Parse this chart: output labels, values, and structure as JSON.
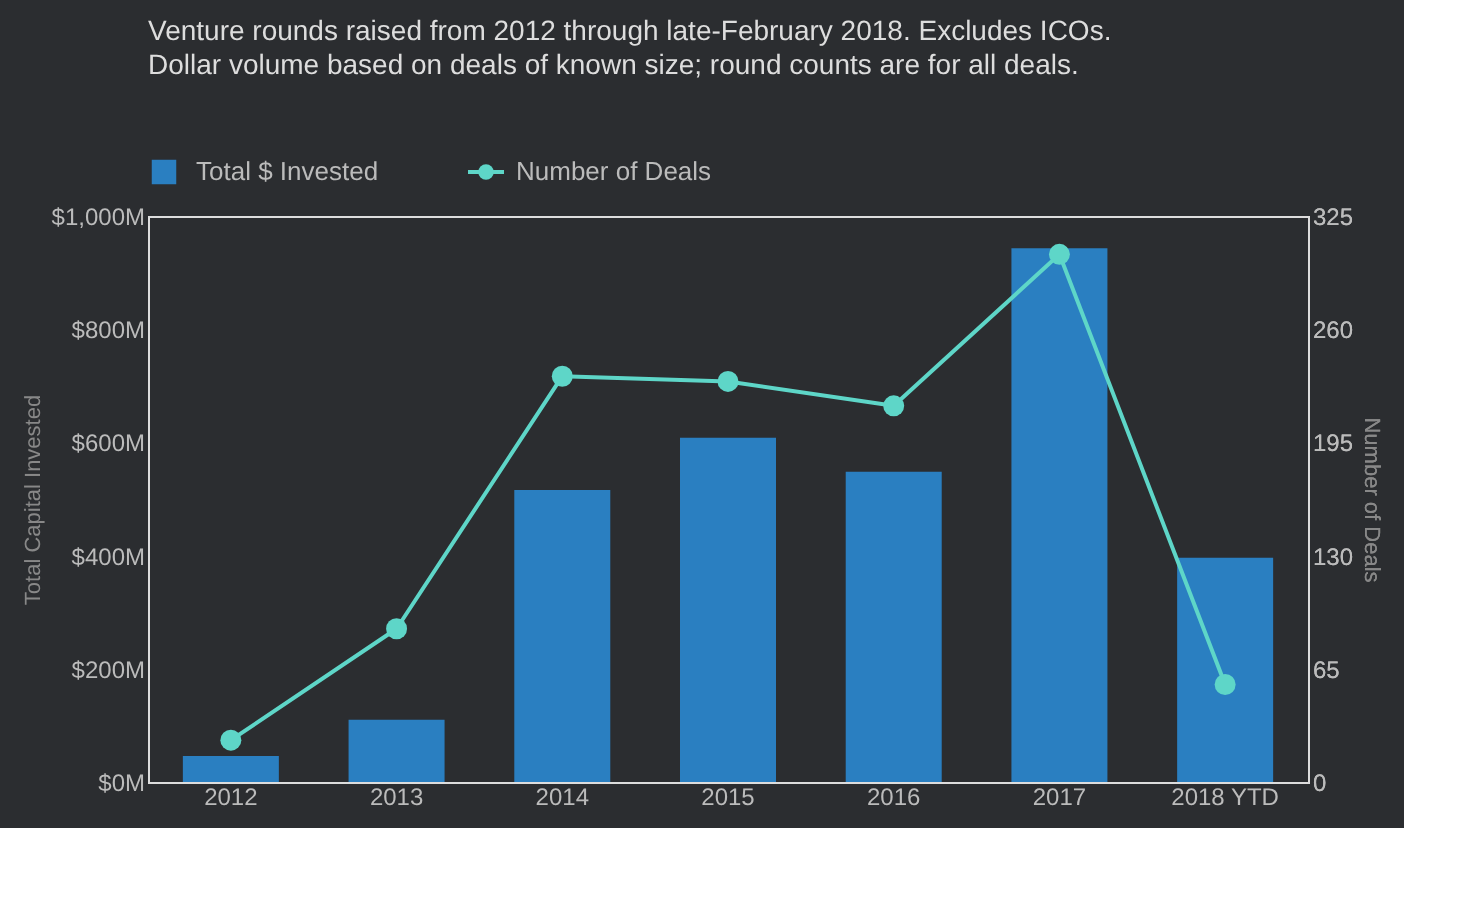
{
  "chart_data": {
    "type": "bar",
    "title": "Venture rounds raised from 2012 through late-February 2018. Excludes ICOs.",
    "subtitle": "Dollar volume based on deals of known size; round counts are for all deals.",
    "ylabel": "Total Capital Invested",
    "y2label": "Number of Deals",
    "categories": [
      "2012",
      "2013",
      "2014",
      "2015",
      "2016",
      "2017",
      "2018 YTD"
    ],
    "series": [
      {
        "name": "Total $ Invested",
        "color": "#2a7fc1",
        "values": [
          46,
          110,
          516,
          608,
          548,
          943,
          396
        ]
      },
      {
        "name": "Number of Deals",
        "type": "line",
        "axis": "y2",
        "color": "#5ed6c8",
        "marker": "circle",
        "values": [
          24,
          88,
          233,
          230,
          216,
          303,
          56
        ]
      }
    ],
    "ylim": [
      0,
      1000
    ],
    "yticks": [
      {
        "value": 0,
        "label": "$0M"
      },
      {
        "value": 200,
        "label": "$200M"
      },
      {
        "value": 400,
        "label": "$400M"
      },
      {
        "value": 600,
        "label": "$600M"
      },
      {
        "value": 800,
        "label": "$800M"
      },
      {
        "value": 1000,
        "label": "$1,000M"
      }
    ],
    "y2lim": [
      0,
      325
    ],
    "y2ticks": [
      0,
      65,
      130,
      195,
      260,
      325
    ],
    "grid": false,
    "legend": "top left"
  }
}
